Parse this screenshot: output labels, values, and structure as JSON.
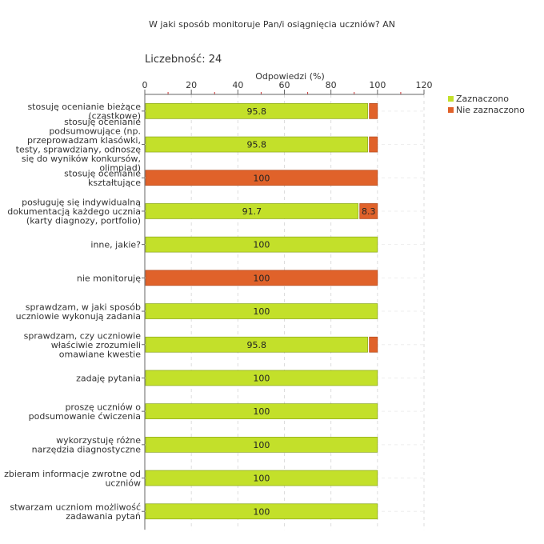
{
  "page": {
    "title": "W jaki sposób monitoruje Pan/i osiągnięcia uczniów?  AN",
    "count_label": "Liczebność: 24"
  },
  "colors": {
    "selected": "#c3e02a",
    "not_selected": "#e0622a",
    "grid": "#dddddd",
    "axis": "#666666"
  },
  "chart_data": {
    "type": "bar",
    "orientation": "horizontal",
    "stacked": true,
    "title": "W jaki sposób monitoruje Pan/i osiągnięcia uczniów?  AN",
    "xlabel": "Odpowiedzi (%)",
    "xlim": [
      0,
      120
    ],
    "xticks": [
      0,
      20,
      40,
      60,
      80,
      100,
      120
    ],
    "legend_position": "top-right",
    "categories": [
      [
        "stosuję ocenianie bieżące",
        "(cząstkowe)"
      ],
      [
        "stosuję ocenianie",
        "podsumowujące (np.",
        "przeprowadzam klasówki,",
        "testy, sprawdziany, odnoszę",
        "się do wyników konkursów,",
        "olimpiad)"
      ],
      [
        "stosuję ocenianie",
        "kształtujące"
      ],
      [
        "posługuję się indywidualną",
        "dokumentacją każdego ucznia",
        "(karty diagnozy, portfolio)"
      ],
      [
        "inne, jakie?"
      ],
      [
        "nie monitoruję"
      ],
      [
        "sprawdzam, w jaki sposób",
        "uczniowie wykonują zadania"
      ],
      [
        "sprawdzam, czy uczniowie",
        "właściwie zrozumieli",
        "omawiane kwestie"
      ],
      [
        "zadaję pytania"
      ],
      [
        "proszę uczniów o",
        "podsumowanie ćwiczenia"
      ],
      [
        "wykorzystuję różne",
        "narzędzia diagnostyczne"
      ],
      [
        "zbieram informacje zwrotne od",
        "uczniów"
      ],
      [
        "stwarzam uczniom możliwość",
        "zadawania pytań"
      ]
    ],
    "series": [
      {
        "name": "Zaznaczono",
        "color": "#c3e02a",
        "values": [
          95.8,
          95.8,
          0,
          91.7,
          100,
          0,
          100,
          95.8,
          100,
          100,
          100,
          100,
          100
        ]
      },
      {
        "name": "Nie zaznaczono",
        "color": "#e0622a",
        "values": [
          4.2,
          4.2,
          100,
          8.3,
          0,
          100,
          0,
          4.2,
          0,
          0,
          0,
          0,
          0
        ]
      }
    ],
    "data_labels": [
      [
        "95.8",
        ""
      ],
      [
        "95.8",
        ""
      ],
      [
        "",
        "100"
      ],
      [
        "91.7",
        "8.3"
      ],
      [
        "100",
        ""
      ],
      [
        "",
        "100"
      ],
      [
        "100",
        ""
      ],
      [
        "95.8",
        ""
      ],
      [
        "100",
        ""
      ],
      [
        "100",
        ""
      ],
      [
        "100",
        ""
      ],
      [
        "100",
        ""
      ],
      [
        "100",
        ""
      ]
    ]
  }
}
